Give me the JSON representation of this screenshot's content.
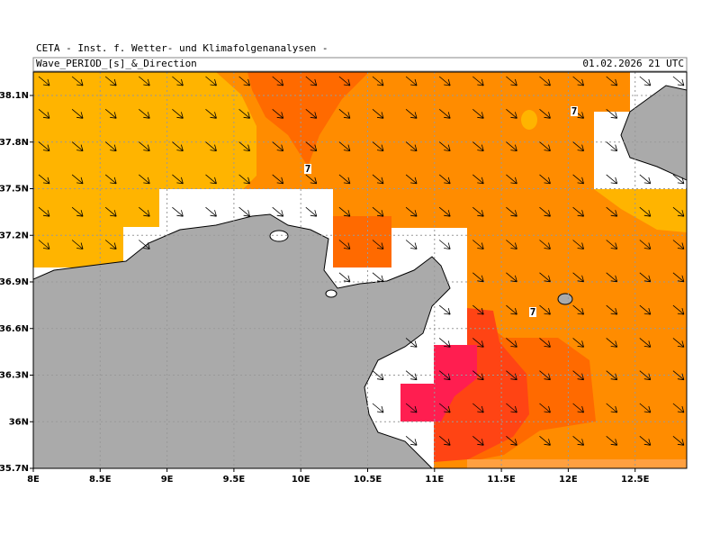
{
  "header": "CETA - Inst. f. Wetter- und Klimafolgenanalysen -",
  "title": "Wave_PERIOD_[s]_&_Direction",
  "date": "01.02.2026 21 UTC",
  "lat_labels": [
    "38.1N",
    "37.8N",
    "37.5N",
    "37.2N",
    "36.9N",
    "36.6N",
    "36.3N",
    "36N",
    "35.7N"
  ],
  "lon_labels": [
    "8E",
    "8.5E",
    "9E",
    "9.5E",
    "10E",
    "10.5E",
    "11E",
    "11.5E",
    "12E",
    "12.5E"
  ],
  "contour_labels": [
    "7",
    "7",
    "7"
  ]
}
